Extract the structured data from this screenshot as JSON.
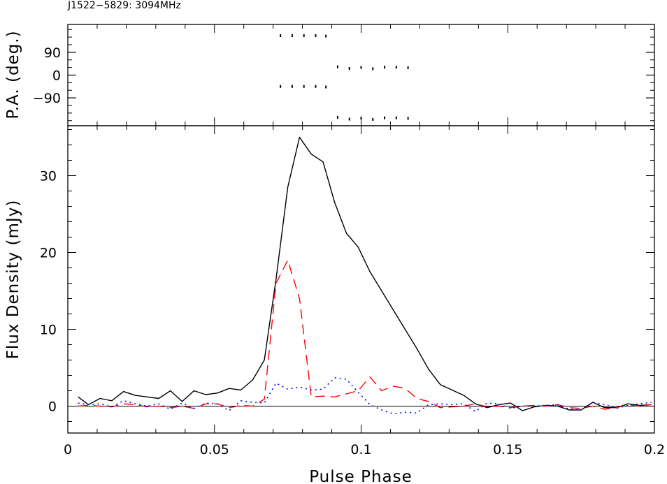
{
  "title": "J1522−5829: 3094MHz",
  "colors": {
    "total": "#000000",
    "linear": "#ff0000",
    "circular": "#0000ff",
    "zero_line": "#000000"
  },
  "chart_data": [
    {
      "type": "scatter",
      "panel": "position-angle",
      "ylabel": "P.A. (deg.)",
      "xlim": [
        0,
        0.2
      ],
      "ylim": [
        -200,
        200
      ],
      "yticks": [
        -90,
        0,
        90
      ],
      "ytick_labels": [
        "−90",
        "0",
        "90"
      ],
      "points": [
        {
          "x": 0.0725,
          "y": 156
        },
        {
          "x": 0.0765,
          "y": 156
        },
        {
          "x": 0.0805,
          "y": 156
        },
        {
          "x": 0.0845,
          "y": 156
        },
        {
          "x": 0.088,
          "y": 154
        },
        {
          "x": 0.0725,
          "y": -45
        },
        {
          "x": 0.0765,
          "y": -45
        },
        {
          "x": 0.0805,
          "y": -45
        },
        {
          "x": 0.0845,
          "y": -45
        },
        {
          "x": 0.088,
          "y": -47
        },
        {
          "x": 0.092,
          "y": 33
        },
        {
          "x": 0.096,
          "y": 26
        },
        {
          "x": 0.1,
          "y": 30
        },
        {
          "x": 0.104,
          "y": 25
        },
        {
          "x": 0.108,
          "y": 31
        },
        {
          "x": 0.112,
          "y": 31
        },
        {
          "x": 0.116,
          "y": 29
        },
        {
          "x": 0.092,
          "y": -167
        },
        {
          "x": 0.096,
          "y": -174
        },
        {
          "x": 0.1,
          "y": -170
        },
        {
          "x": 0.104,
          "y": -175
        },
        {
          "x": 0.108,
          "y": -169
        },
        {
          "x": 0.112,
          "y": -169
        },
        {
          "x": 0.116,
          "y": -171
        }
      ]
    },
    {
      "type": "line",
      "panel": "flux-density",
      "xlabel": "Pulse Phase",
      "ylabel": "Flux Density (mJy)",
      "xlim": [
        0,
        0.2
      ],
      "ylim": [
        -3.5,
        36.5
      ],
      "xticks": [
        0,
        0.05,
        0.1,
        0.15,
        0.2
      ],
      "xtick_labels": [
        "0",
        "0.05",
        "0.1",
        "0.15",
        "0.2"
      ],
      "yticks": [
        0,
        10,
        20,
        30
      ],
      "ytick_labels": [
        "0",
        "10",
        "20",
        "30"
      ],
      "zero_line": true,
      "x": [
        0.0035,
        0.007,
        0.011,
        0.015,
        0.019,
        0.023,
        0.027,
        0.031,
        0.035,
        0.039,
        0.043,
        0.047,
        0.051,
        0.055,
        0.059,
        0.063,
        0.067,
        0.071,
        0.075,
        0.079,
        0.083,
        0.087,
        0.091,
        0.095,
        0.099,
        0.103,
        0.107,
        0.111,
        0.115,
        0.119,
        0.123,
        0.127,
        0.131,
        0.135,
        0.139,
        0.143,
        0.147,
        0.151,
        0.155,
        0.159,
        0.163,
        0.167,
        0.171,
        0.175,
        0.179,
        0.183,
        0.187,
        0.191,
        0.195,
        0.199
      ],
      "series": [
        {
          "style": "solid",
          "values": [
            1.2,
            0.2,
            1.0,
            0.7,
            1.9,
            1.4,
            1.2,
            1.0,
            2.0,
            0.6,
            2.0,
            1.5,
            1.7,
            2.3,
            2.1,
            3.4,
            6.0,
            16.5,
            28.5,
            35.0,
            32.8,
            31.8,
            26.5,
            22.5,
            20.7,
            17.5,
            15.0,
            12.5,
            10.0,
            7.5,
            4.8,
            2.8,
            2.1,
            1.4,
            0.3,
            -0.2,
            0.2,
            0.4,
            -0.6,
            -0.1,
            0.1,
            0.0,
            -0.5,
            -0.5,
            0.5,
            -0.2,
            -0.2,
            0.3,
            0.1,
            0.2
          ]
        },
        {
          "style": "dashed",
          "values": [
            0.0,
            0.1,
            0.0,
            -0.1,
            0.3,
            0.2,
            -0.1,
            0.0,
            -0.2,
            0.0,
            -0.3,
            0.3,
            0.3,
            -0.2,
            0.1,
            0.0,
            0.9,
            16.0,
            19.0,
            14.0,
            1.2,
            1.3,
            1.2,
            1.6,
            2.0,
            3.8,
            2.0,
            2.6,
            2.3,
            1.0,
            0.6,
            -0.2,
            -0.1,
            0.0,
            0.3,
            -0.1,
            0.0,
            -0.2,
            0.0,
            0.1,
            0.0,
            0.2,
            -0.2,
            -0.3,
            0.0,
            -0.4,
            -0.2,
            0.2,
            0.0,
            0.2
          ]
        },
        {
          "style": "dotted",
          "values": [
            0.4,
            0.2,
            0.3,
            -0.1,
            0.7,
            0.3,
            0.0,
            0.3,
            -0.4,
            0.4,
            -0.3,
            0.4,
            0.3,
            -0.6,
            0.7,
            0.5,
            0.4,
            3.0,
            2.2,
            2.5,
            2.1,
            2.2,
            3.7,
            3.5,
            1.8,
            0.2,
            -0.5,
            -1.0,
            -0.8,
            -0.9,
            0.2,
            0.3,
            0.2,
            0.3,
            -0.7,
            0.4,
            0.3,
            -0.3,
            0.0,
            0.0,
            0.1,
            0.2,
            -0.4,
            -0.5,
            0.5,
            0.2,
            -0.3,
            0.1,
            0.3,
            0.5
          ]
        }
      ]
    }
  ]
}
